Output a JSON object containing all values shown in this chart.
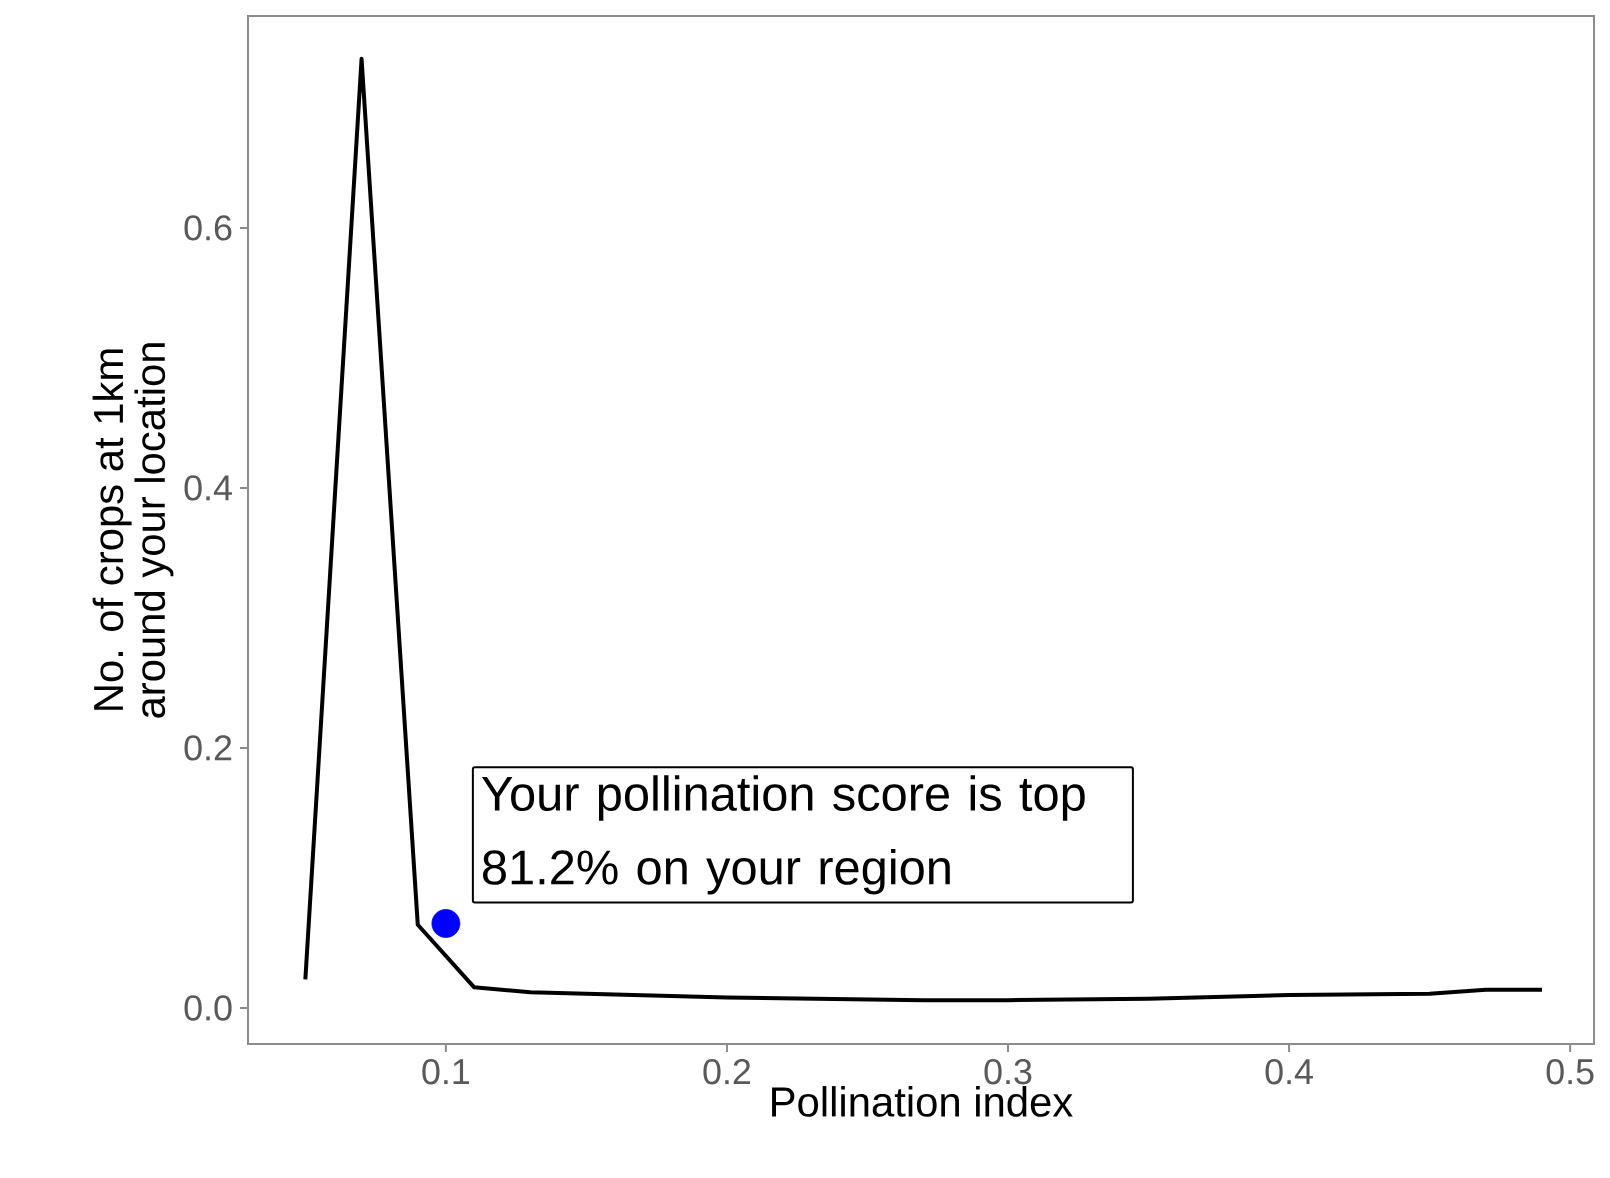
{
  "chart_data": {
    "type": "line",
    "xlabel": "Pollination index",
    "ylabel": "No. of crops at 1km\naround your location",
    "xlim": [
      0.0296,
      0.5085
    ],
    "ylim": [
      -0.0277,
      0.763
    ],
    "xticks": [
      0.1,
      0.2,
      0.3,
      0.4,
      0.5
    ],
    "yticks": [
      {
        "value": 0,
        "label": "0.0"
      },
      0.2,
      0.4,
      0.6
    ],
    "grid": false,
    "series": [
      {
        "color": "#000000",
        "x": [
          0.05,
          0.07,
          0.09,
          0.11,
          0.13,
          0.2,
          0.27,
          0.3,
          0.35,
          0.4,
          0.45,
          0.47,
          0.49
        ],
        "values": [
          0.022,
          0.73,
          0.064,
          0.016,
          0.012,
          0.008,
          0.006,
          0.006,
          0.007,
          0.01,
          0.011,
          0.014,
          0.014
        ]
      },
      {
        "type": "scatter",
        "color": "#0000ff",
        "marker": "circle",
        "x": [
          0.1
        ],
        "values": [
          0.065
        ]
      }
    ],
    "annotations": [
      {
        "text": "Your pollination score is top 81.2% on your region",
        "x": 0.1,
        "y": 0.065
      }
    ]
  }
}
